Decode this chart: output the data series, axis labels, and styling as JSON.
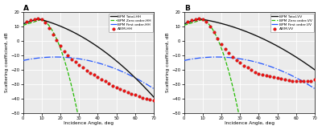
{
  "xlim": [
    0,
    70
  ],
  "ylim": [
    -50,
    20
  ],
  "xlabel": "Incidence Angle, deg",
  "ylabel": "Scattering coefficient, dB",
  "panel_labels": [
    "A",
    "B"
  ],
  "xticks": [
    0,
    10,
    20,
    30,
    40,
    50,
    60,
    70
  ],
  "yticks": [
    -50,
    -40,
    -30,
    -20,
    -10,
    0,
    10,
    20
  ],
  "legend_A": [
    "BPM Total-HH",
    "BPM Zero order-HH",
    "BPM First order-HH",
    "AIEM-HH"
  ],
  "legend_B": [
    "BPM Total-VV",
    "BPM Zero order-VV",
    "BPM First order-VV",
    "AIEM-VV"
  ],
  "colors": {
    "total": "#111111",
    "zero": "#22bb00",
    "first": "#2255ff",
    "aiem": "#ee1111"
  },
  "background_color": "#ebebeb",
  "aiem_hh_x": [
    2,
    4,
    6,
    8,
    10,
    12,
    14,
    16,
    18,
    20,
    22,
    24,
    26,
    28,
    30,
    32,
    34,
    36,
    38,
    40,
    42,
    44,
    46,
    48,
    50,
    52,
    54,
    56,
    58,
    60,
    62,
    64,
    66,
    68,
    70
  ],
  "aiem_hh_y": [
    13.5,
    14.8,
    15.3,
    15.5,
    15.2,
    13.0,
    9.0,
    4.5,
    0.5,
    -3.5,
    -7.0,
    -10.0,
    -12.5,
    -14.5,
    -16.5,
    -18.5,
    -20.5,
    -22.0,
    -23.5,
    -25.0,
    -26.5,
    -28.0,
    -29.5,
    -31.0,
    -32.0,
    -33.5,
    -34.5,
    -35.5,
    -36.5,
    -37.5,
    -38.5,
    -39.5,
    -40.0,
    -40.5,
    -41.0
  ],
  "aiem_vv_x": [
    2,
    4,
    6,
    8,
    10,
    12,
    14,
    16,
    18,
    20,
    22,
    24,
    26,
    28,
    30,
    32,
    34,
    36,
    38,
    40,
    42,
    44,
    46,
    48,
    50,
    52,
    54,
    56,
    58,
    60,
    62,
    64,
    66,
    68,
    70
  ],
  "aiem_vv_y": [
    13.5,
    14.8,
    15.3,
    15.5,
    15.2,
    13.5,
    10.0,
    6.0,
    2.0,
    -2.0,
    -5.5,
    -8.5,
    -11.0,
    -13.0,
    -15.0,
    -17.0,
    -18.5,
    -20.0,
    -21.5,
    -23.0,
    -23.5,
    -24.0,
    -24.5,
    -25.0,
    -25.5,
    -26.0,
    -26.5,
    -27.0,
    -27.5,
    -27.5,
    -28.0,
    -28.0,
    -28.0,
    -27.5,
    -26.5
  ]
}
